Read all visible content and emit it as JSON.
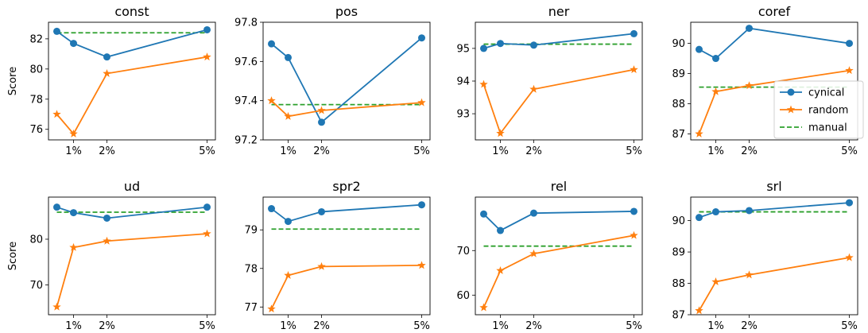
{
  "chart_data": {
    "type": "line",
    "ylabel": "Score",
    "x_tick_labels": [
      "1%",
      "2%",
      "5%"
    ],
    "legend": {
      "placement": "right, inside coref panel",
      "entries": [
        {
          "series": "cynical",
          "label": "cynical"
        },
        {
          "series": "random",
          "label": "random"
        },
        {
          "series": "manual",
          "label": "manual"
        }
      ]
    },
    "colors": {
      "cynical": "#1f77b4",
      "random": "#ff7f0e",
      "manual": "#2ca02c"
    },
    "x": [
      0.5,
      1,
      2,
      5
    ],
    "xlim": [
      0.25,
      5.25
    ],
    "panels": [
      {
        "title": "const",
        "ylim": [
          75.3,
          83.1
        ],
        "yticks": [
          "76",
          "78",
          "80",
          "82"
        ],
        "ytick_values": [
          76,
          78,
          80,
          82
        ],
        "show_ylabel": true,
        "series": [
          {
            "name": "cynical",
            "values": [
              82.5,
              81.7,
              80.8,
              82.6
            ]
          },
          {
            "name": "random",
            "values": [
              77.0,
              75.7,
              79.7,
              80.8
            ]
          }
        ],
        "manual": 82.4
      },
      {
        "title": "pos",
        "ylim": [
          97.2,
          97.8
        ],
        "yticks": [
          "97.2",
          "97.4",
          "97.6",
          "97.8"
        ],
        "ytick_values": [
          97.2,
          97.4,
          97.6,
          97.8
        ],
        "show_ylabel": false,
        "series": [
          {
            "name": "cynical",
            "values": [
              97.69,
              97.62,
              97.29,
              97.72
            ]
          },
          {
            "name": "random",
            "values": [
              97.4,
              97.32,
              97.35,
              97.39
            ]
          }
        ],
        "manual": 97.38
      },
      {
        "title": "ner",
        "ylim": [
          92.2,
          95.8
        ],
        "yticks": [
          "93",
          "94",
          "95"
        ],
        "ytick_values": [
          93,
          94,
          95
        ],
        "show_ylabel": false,
        "series": [
          {
            "name": "cynical",
            "values": [
              95.0,
              95.15,
              95.1,
              95.45
            ]
          },
          {
            "name": "random",
            "values": [
              93.9,
              92.4,
              93.75,
              94.35
            ]
          }
        ],
        "manual": 95.13
      },
      {
        "title": "coref",
        "ylim": [
          86.8,
          90.7
        ],
        "yticks": [
          "87",
          "88",
          "89",
          "90"
        ],
        "ytick_values": [
          87,
          88,
          89,
          90
        ],
        "show_ylabel": false,
        "series": [
          {
            "name": "cynical",
            "values": [
              89.8,
              89.5,
              90.5,
              90.0
            ]
          },
          {
            "name": "random",
            "values": [
              87.0,
              88.4,
              88.6,
              89.1
            ]
          }
        ],
        "manual": 88.55
      },
      {
        "title": "ud",
        "ylim": [
          63.5,
          89.2
        ],
        "yticks": [
          "70",
          "80"
        ],
        "ytick_values": [
          70,
          80
        ],
        "show_ylabel": true,
        "series": [
          {
            "name": "cynical",
            "values": [
              87.0,
              85.8,
              84.6,
              87.0
            ]
          },
          {
            "name": "random",
            "values": [
              65.2,
              78.2,
              79.6,
              81.2
            ]
          }
        ],
        "manual": 85.9
      },
      {
        "title": "spr2",
        "ylim": [
          76.8,
          79.85
        ],
        "yticks": [
          "77",
          "78",
          "79"
        ],
        "ytick_values": [
          77,
          78,
          79
        ],
        "show_ylabel": false,
        "series": [
          {
            "name": "cynical",
            "values": [
              79.55,
              79.22,
              79.47,
              79.65
            ]
          },
          {
            "name": "random",
            "values": [
              76.95,
              77.82,
              78.05,
              78.08
            ]
          }
        ],
        "manual": 79.02
      },
      {
        "title": "rel",
        "ylim": [
          55.6,
          82.0
        ],
        "yticks": [
          "60",
          "70"
        ],
        "ytick_values": [
          60,
          70
        ],
        "show_ylabel": false,
        "series": [
          {
            "name": "cynical",
            "values": [
              78.2,
              74.5,
              78.4,
              78.8
            ]
          },
          {
            "name": "random",
            "values": [
              57.2,
              65.5,
              69.3,
              73.4
            ]
          }
        ],
        "manual": 71.0
      },
      {
        "title": "srl",
        "ylim": [
          87.0,
          90.75
        ],
        "yticks": [
          "87",
          "88",
          "89",
          "90"
        ],
        "ytick_values": [
          87,
          88,
          89,
          90
        ],
        "show_ylabel": false,
        "series": [
          {
            "name": "cynical",
            "values": [
              90.1,
              90.28,
              90.32,
              90.57
            ]
          },
          {
            "name": "random",
            "values": [
              87.13,
              88.05,
              88.27,
              88.82
            ]
          }
        ],
        "manual": 90.28
      }
    ]
  }
}
